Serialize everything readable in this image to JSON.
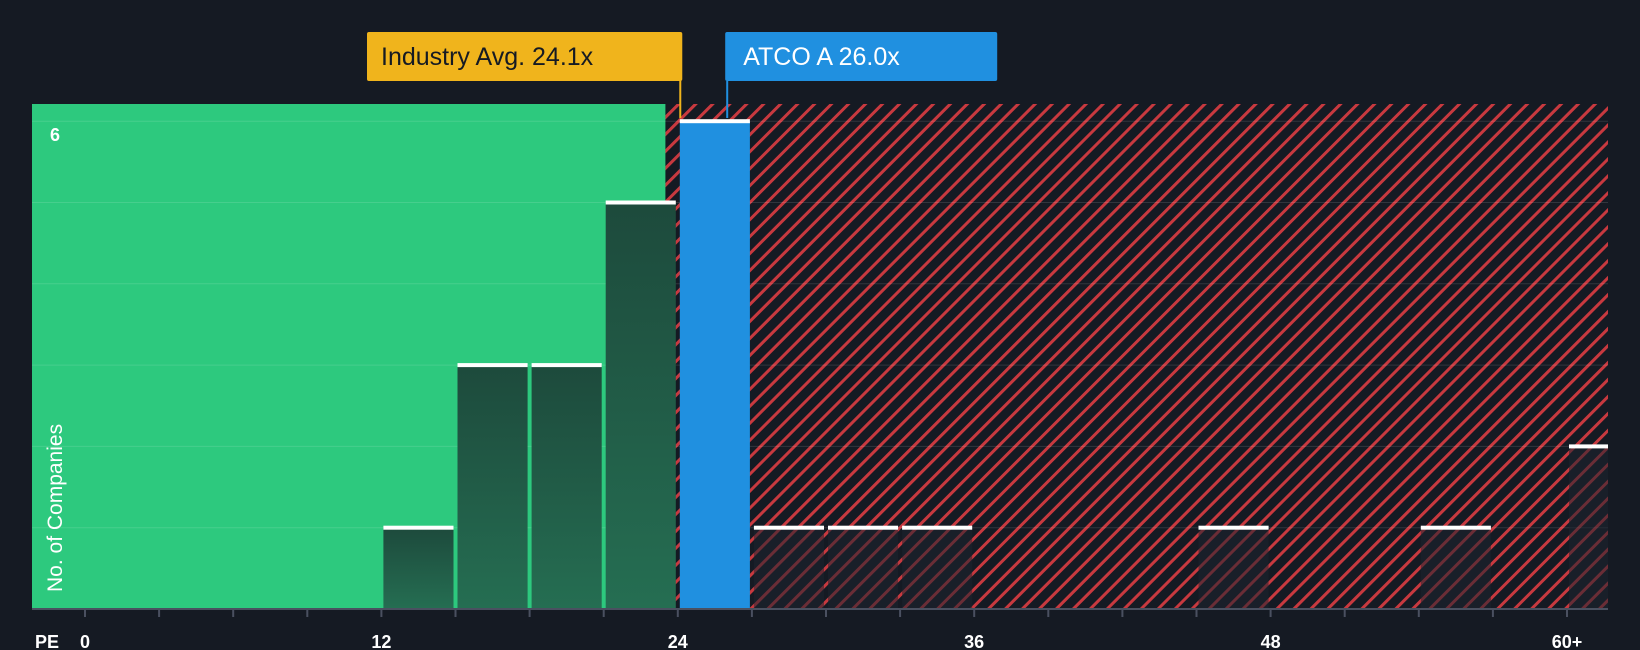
{
  "chart_data": {
    "type": "bar",
    "title": "",
    "xlabel": "PE",
    "ylabel": "No. of Companies",
    "xlim": [
      0,
      61
    ],
    "ylim": [
      0,
      6.2
    ],
    "x_ticks": [
      {
        "value": 0,
        "label": "0"
      },
      {
        "value": 12,
        "label": "12"
      },
      {
        "value": 24,
        "label": "24"
      },
      {
        "value": 36,
        "label": "36"
      },
      {
        "value": 48,
        "label": "48"
      },
      {
        "value": 60,
        "label": "60+"
      }
    ],
    "y_ticks": [
      {
        "value": 6,
        "label": "6"
      }
    ],
    "bin_width": 3,
    "bins": [
      {
        "start": 12,
        "count": 1
      },
      {
        "start": 15,
        "count": 3
      },
      {
        "start": 18,
        "count": 3
      },
      {
        "start": 21,
        "count": 5
      },
      {
        "start": 24,
        "count": 6,
        "highlight": true
      },
      {
        "start": 27,
        "count": 1
      },
      {
        "start": 30,
        "count": 1
      },
      {
        "start": 33,
        "count": 1
      },
      {
        "start": 45,
        "count": 1
      },
      {
        "start": 54,
        "count": 1
      },
      {
        "start": 60,
        "count": 2
      }
    ],
    "industry_avg": {
      "value": 24.1,
      "label": "Industry Avg. 24.1x"
    },
    "company": {
      "name": "ATCO A",
      "value": 26.0,
      "label": "ATCO A 26.0x"
    },
    "colors": {
      "background": "#151a23",
      "undervalued_zone": "#2dc97e",
      "overvalued_hatch": "#c8393f",
      "highlight_bar": "#2090e0",
      "industry_callout": "#f0b41c",
      "company_callout": "#2090e0"
    }
  }
}
